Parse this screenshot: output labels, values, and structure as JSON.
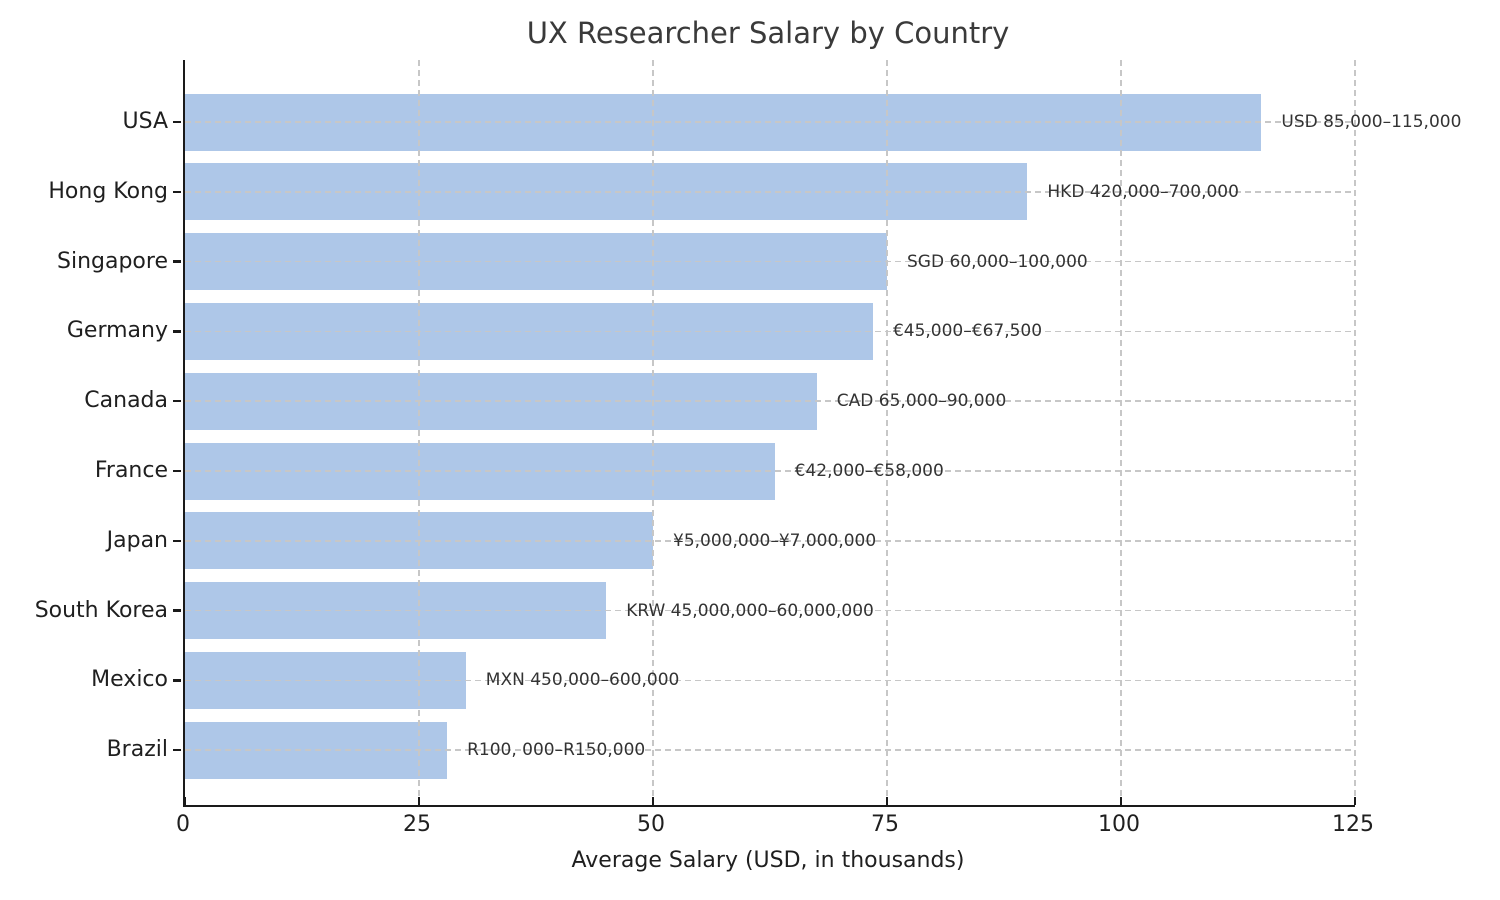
{
  "chart_data": {
    "type": "bar",
    "orientation": "horizontal",
    "title": "UX Researcher Salary by Country",
    "xlabel": "Average Salary (USD, in thousands)",
    "xlim": [
      0,
      125
    ],
    "xticks": [
      "0",
      "25",
      "50",
      "75",
      "100",
      "125"
    ],
    "grid": "dashed, both axes, drawn over bars",
    "legend": "none",
    "bar_color": "#aec7e8",
    "categories": [
      "USA",
      "Hong Kong",
      "Singapore",
      "Germany",
      "Canada",
      "France",
      "Japan",
      "South Korea",
      "Mexico",
      "Brazil"
    ],
    "values": [
      115,
      90,
      75,
      73.5,
      67.5,
      63,
      50,
      45,
      30,
      28
    ],
    "annotations": [
      "USD 85,000–115,000",
      "HKD 420,000–700,000",
      "SGD 60,000–100,000",
      "€45,000–€67,500",
      "CAD 65,000–90,000",
      "€42,000–€58,000",
      "¥5,000,000–¥7,000,000",
      "KRW 45,000,000–60,000,000",
      "MXN 450,000–600,000",
      "R100, 000–R150,000"
    ]
  }
}
